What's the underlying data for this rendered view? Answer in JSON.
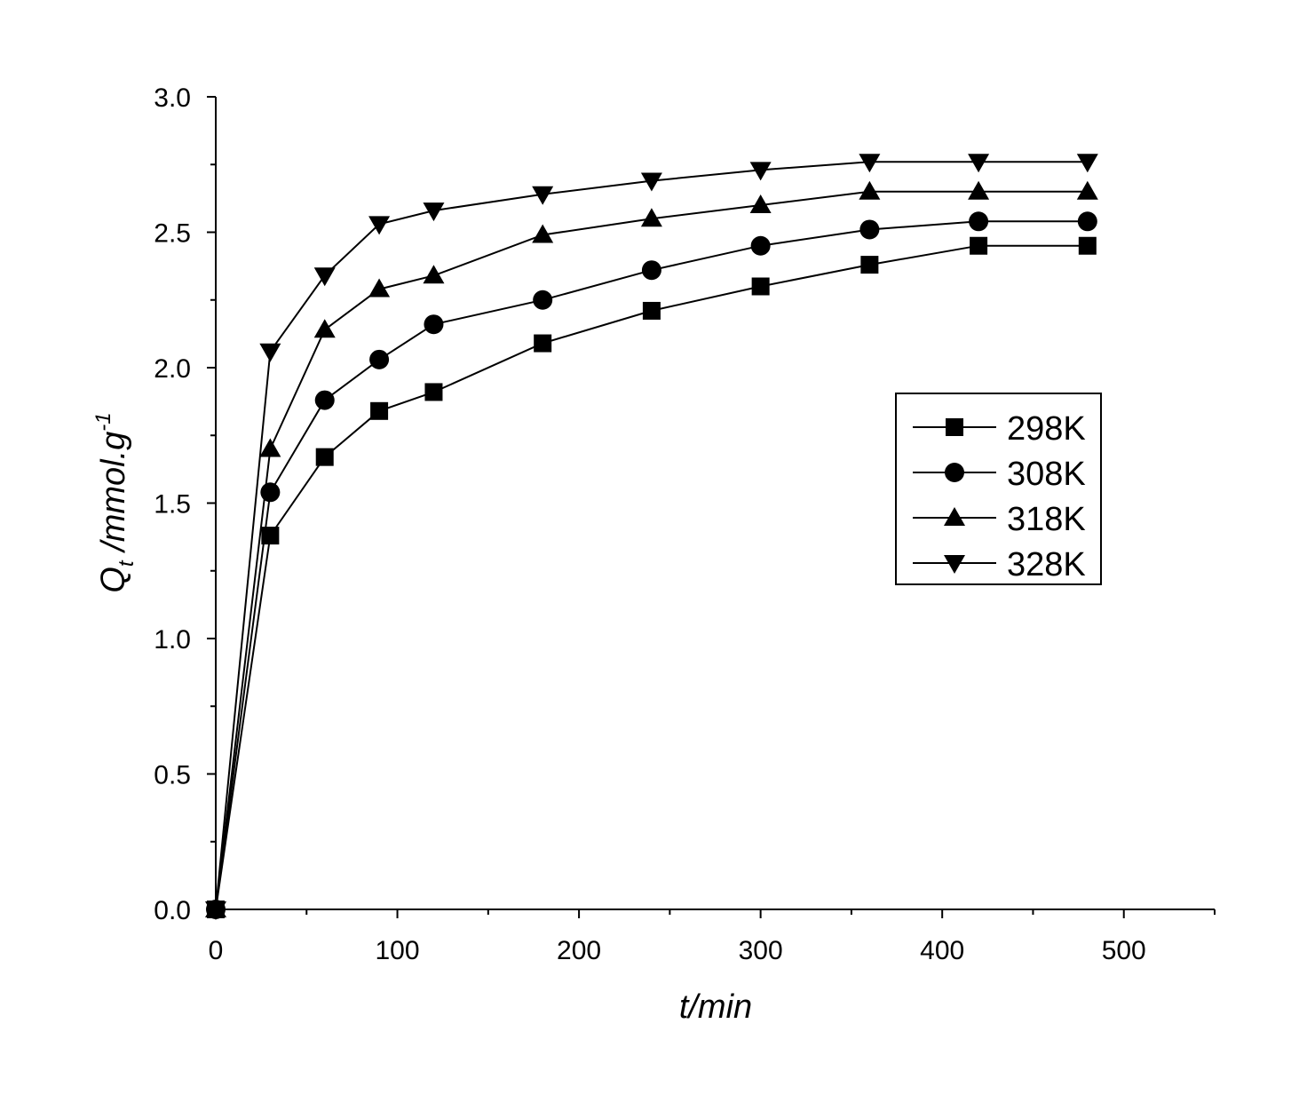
{
  "chart_data": {
    "type": "line",
    "title": "",
    "xlabel": "t/min",
    "ylabel": {
      "main": "Q",
      "sub": "t",
      "rest": " /mmol.g",
      "sup": "-1"
    },
    "xlim": [
      0,
      550
    ],
    "ylim": [
      0,
      3.0
    ],
    "x_major_ticks": [
      0,
      100,
      200,
      300,
      400,
      500
    ],
    "x_tick_labels": [
      "0",
      "100",
      "200",
      "300",
      "400",
      "500"
    ],
    "y_major_ticks": [
      0,
      0.5,
      1.0,
      1.5,
      2.0,
      2.5,
      3.0
    ],
    "y_tick_labels": [
      "0.0",
      "0.5",
      "1.0",
      "1.5",
      "2.0",
      "2.5",
      "3.0"
    ],
    "x_minor_step": 50,
    "y_minor_step": 0.25,
    "grid": false,
    "legend_position": "right-middle",
    "x": [
      0,
      30,
      60,
      90,
      120,
      180,
      240,
      300,
      360,
      420,
      480
    ],
    "series": [
      {
        "name": "298K",
        "marker": "square",
        "values": [
          0,
          1.38,
          1.67,
          1.84,
          1.91,
          2.09,
          2.21,
          2.3,
          2.38,
          2.45,
          2.45
        ]
      },
      {
        "name": "308K",
        "marker": "circle",
        "values": [
          0,
          1.54,
          1.88,
          2.03,
          2.16,
          2.25,
          2.36,
          2.45,
          2.51,
          2.54,
          2.54
        ]
      },
      {
        "name": "318K",
        "marker": "triangle-up",
        "values": [
          0,
          1.7,
          2.14,
          2.29,
          2.34,
          2.49,
          2.55,
          2.6,
          2.65,
          2.65,
          2.65
        ]
      },
      {
        "name": "328K",
        "marker": "triangle-down",
        "values": [
          0,
          2.06,
          2.34,
          2.53,
          2.58,
          2.64,
          2.69,
          2.73,
          2.76,
          2.76,
          2.76
        ]
      }
    ]
  }
}
